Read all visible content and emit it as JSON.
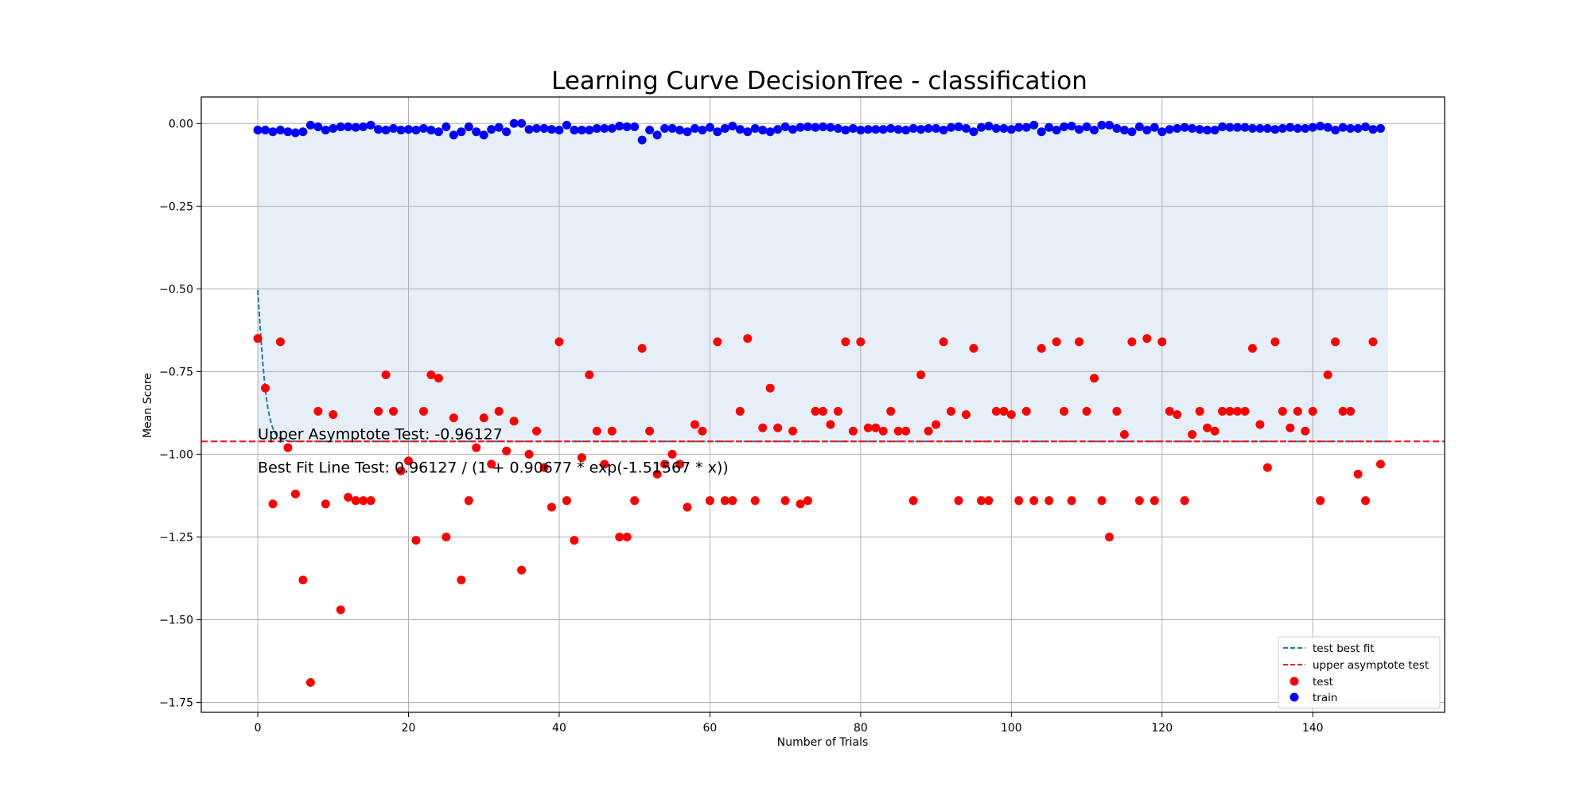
{
  "chart_data": {
    "type": "scatter",
    "title": "Learning Curve DecisionTree - classification",
    "xlabel": "Number of Trials",
    "ylabel": "Mean Score",
    "xlim": [
      -7.5,
      157.5
    ],
    "ylim": [
      -1.78,
      0.08
    ],
    "xticks": [
      0,
      20,
      40,
      60,
      80,
      100,
      120,
      140
    ],
    "yticks": [
      0.0,
      -0.25,
      -0.5,
      -0.75,
      -1.0,
      -1.25,
      -1.5,
      -1.75
    ],
    "grid": true,
    "legend_position": "lower right",
    "band": {
      "x_from": 0,
      "x_to": 150,
      "y_top": -0.02,
      "y_bottom": -0.96127,
      "color": "#e6eff8"
    },
    "annotations": [
      "Upper Asymptote Test: -0.96127",
      "Best Fit Line Test: 0.96127 / (1 + 0.90677 * exp(-1.51567 * x))"
    ],
    "annotation_anchor": [
      0,
      -0.955,
      -1.055
    ],
    "series": [
      {
        "name": "test best fit",
        "kind": "fit-line",
        "color": "#1f77b4",
        "fit": {
          "a": -0.96127,
          "b": 0.90677,
          "c": 1.51567,
          "x_from": 0,
          "x_to": 150
        }
      },
      {
        "name": "upper asymptote test",
        "kind": "hline",
        "color": "#ff0000",
        "y": -0.96127
      },
      {
        "name": "test",
        "kind": "points",
        "color": "#ff0000",
        "x": [
          0,
          1,
          2,
          3,
          4,
          5,
          6,
          7,
          8,
          9,
          10,
          11,
          12,
          13,
          14,
          15,
          16,
          17,
          18,
          19,
          20,
          21,
          22,
          23,
          24,
          25,
          26,
          27,
          28,
          29,
          30,
          31,
          32,
          33,
          34,
          35,
          36,
          37,
          38,
          39,
          40,
          41,
          42,
          43,
          44,
          45,
          46,
          47,
          48,
          49,
          50,
          51,
          52,
          53,
          54,
          55,
          56,
          57,
          58,
          59,
          60,
          61,
          62,
          63,
          64,
          65,
          66,
          67,
          68,
          69,
          70,
          71,
          72,
          73,
          74,
          75,
          76,
          77,
          78,
          79,
          80,
          81,
          82,
          83,
          84,
          85,
          86,
          87,
          88,
          89,
          90,
          91,
          92,
          93,
          94,
          95,
          96,
          97,
          98,
          99,
          100,
          101,
          102,
          103,
          104,
          105,
          106,
          107,
          108,
          109,
          110,
          111,
          112,
          113,
          114,
          115,
          116,
          117,
          118,
          119,
          120,
          121,
          122,
          123,
          124,
          125,
          126,
          127,
          128,
          129,
          130,
          131,
          132,
          133,
          134,
          135,
          136,
          137,
          138,
          139,
          140,
          141,
          142,
          143,
          144,
          145,
          146,
          147,
          148,
          149
        ],
        "y": [
          -0.65,
          -0.8,
          -1.15,
          -0.66,
          -0.98,
          -1.12,
          -1.38,
          -1.69,
          -0.87,
          -1.15,
          -0.88,
          -1.47,
          -1.13,
          -1.14,
          -1.14,
          -1.14,
          -0.87,
          -0.76,
          -0.87,
          -1.05,
          -1.02,
          -1.26,
          -0.87,
          -0.76,
          -0.77,
          -1.25,
          -0.89,
          -1.38,
          -1.14,
          -0.98,
          -0.89,
          -1.03,
          -0.87,
          -0.99,
          -0.9,
          -1.35,
          -1.0,
          -0.93,
          -1.04,
          -1.16,
          -0.66,
          -1.14,
          -1.26,
          -1.01,
          -0.76,
          -0.93,
          -1.03,
          -0.93,
          -1.25,
          -1.25,
          -1.14,
          -0.68,
          -0.93,
          -1.06,
          -1.03,
          -1.0,
          -1.03,
          -1.16,
          -0.91,
          -0.93,
          -1.14,
          -0.66,
          -1.14,
          -1.14,
          -0.87,
          -0.65,
          -1.14,
          -0.92,
          -0.8,
          -0.92,
          -1.14,
          -0.93,
          -1.15,
          -1.14,
          -0.87,
          -0.87,
          -0.91,
          -0.87,
          -0.66,
          -0.93,
          -0.66,
          -0.92,
          -0.92,
          -0.93,
          -0.87,
          -0.93,
          -0.93,
          -1.14,
          -0.76,
          -0.93,
          -0.91,
          -0.66,
          -0.87,
          -1.14,
          -0.88,
          -0.68,
          -1.14,
          -1.14,
          -0.87,
          -0.87,
          -0.88,
          -1.14,
          -0.87,
          -1.14,
          -0.68,
          -1.14,
          -0.66,
          -0.87,
          -1.14,
          -0.66,
          -0.87,
          -0.77,
          -1.14,
          -1.25,
          -0.87,
          -0.94,
          -0.66,
          -1.14,
          -0.65,
          -1.14,
          -0.66,
          -0.87,
          -0.88,
          -1.14,
          -0.94,
          -0.87,
          -0.92,
          -0.93,
          -0.87,
          -0.87,
          -0.87,
          -0.87,
          -0.68,
          -0.91,
          -1.04,
          -0.66,
          -0.87,
          -0.92,
          -0.87,
          -0.93,
          -0.87,
          -1.14,
          -0.76,
          -0.66,
          -0.87,
          -0.87,
          -1.06,
          -1.14,
          -0.66,
          -1.03
        ]
      },
      {
        "name": "train",
        "kind": "points",
        "color": "#0000ff",
        "x": [
          0,
          1,
          2,
          3,
          4,
          5,
          6,
          7,
          8,
          9,
          10,
          11,
          12,
          13,
          14,
          15,
          16,
          17,
          18,
          19,
          20,
          21,
          22,
          23,
          24,
          25,
          26,
          27,
          28,
          29,
          30,
          31,
          32,
          33,
          34,
          35,
          36,
          37,
          38,
          39,
          40,
          41,
          42,
          43,
          44,
          45,
          46,
          47,
          48,
          49,
          50,
          51,
          52,
          53,
          54,
          55,
          56,
          57,
          58,
          59,
          60,
          61,
          62,
          63,
          64,
          65,
          66,
          67,
          68,
          69,
          70,
          71,
          72,
          73,
          74,
          75,
          76,
          77,
          78,
          79,
          80,
          81,
          82,
          83,
          84,
          85,
          86,
          87,
          88,
          89,
          90,
          91,
          92,
          93,
          94,
          95,
          96,
          97,
          98,
          99,
          100,
          101,
          102,
          103,
          104,
          105,
          106,
          107,
          108,
          109,
          110,
          111,
          112,
          113,
          114,
          115,
          116,
          117,
          118,
          119,
          120,
          121,
          122,
          123,
          124,
          125,
          126,
          127,
          128,
          129,
          130,
          131,
          132,
          133,
          134,
          135,
          136,
          137,
          138,
          139,
          140,
          141,
          142,
          143,
          144,
          145,
          146,
          147,
          148,
          149
        ],
        "y": [
          -0.02,
          -0.02,
          -0.025,
          -0.02,
          -0.025,
          -0.028,
          -0.025,
          -0.005,
          -0.01,
          -0.02,
          -0.015,
          -0.01,
          -0.01,
          -0.012,
          -0.01,
          -0.005,
          -0.018,
          -0.02,
          -0.015,
          -0.02,
          -0.018,
          -0.02,
          -0.015,
          -0.02,
          -0.025,
          -0.01,
          -0.035,
          -0.025,
          -0.01,
          -0.025,
          -0.035,
          -0.018,
          -0.012,
          -0.025,
          0.0,
          0.0,
          -0.018,
          -0.015,
          -0.015,
          -0.018,
          -0.02,
          -0.005,
          -0.02,
          -0.02,
          -0.02,
          -0.015,
          -0.015,
          -0.015,
          -0.008,
          -0.01,
          -0.01,
          -0.05,
          -0.02,
          -0.035,
          -0.015,
          -0.015,
          -0.02,
          -0.025,
          -0.015,
          -0.02,
          -0.012,
          -0.025,
          -0.015,
          -0.008,
          -0.018,
          -0.025,
          -0.015,
          -0.02,
          -0.025,
          -0.018,
          -0.01,
          -0.018,
          -0.012,
          -0.01,
          -0.012,
          -0.01,
          -0.012,
          -0.015,
          -0.02,
          -0.015,
          -0.02,
          -0.018,
          -0.018,
          -0.018,
          -0.015,
          -0.018,
          -0.02,
          -0.015,
          -0.018,
          -0.015,
          -0.015,
          -0.02,
          -0.012,
          -0.01,
          -0.015,
          -0.025,
          -0.012,
          -0.008,
          -0.015,
          -0.015,
          -0.018,
          -0.012,
          -0.012,
          -0.005,
          -0.025,
          -0.012,
          -0.02,
          -0.01,
          -0.008,
          -0.018,
          -0.01,
          -0.02,
          -0.005,
          -0.005,
          -0.015,
          -0.02,
          -0.025,
          -0.01,
          -0.02,
          -0.012,
          -0.025,
          -0.018,
          -0.015,
          -0.012,
          -0.015,
          -0.018,
          -0.02,
          -0.02,
          -0.01,
          -0.012,
          -0.012,
          -0.012,
          -0.015,
          -0.015,
          -0.015,
          -0.018,
          -0.015,
          -0.012,
          -0.015,
          -0.015,
          -0.012,
          -0.008,
          -0.012,
          -0.02,
          -0.012,
          -0.015,
          -0.015,
          -0.01,
          -0.018,
          -0.015
        ]
      }
    ]
  }
}
